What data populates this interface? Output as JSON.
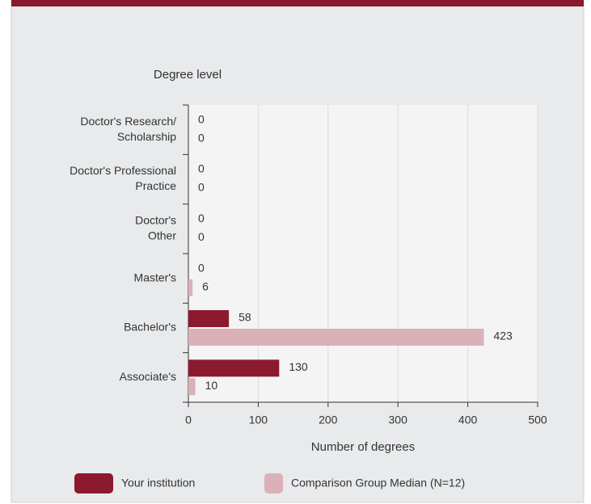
{
  "chart_data": {
    "type": "barh",
    "y_axis_title": "Degree level",
    "x_axis_title": "Number of degrees",
    "categories": [
      [
        "Doctor's Research/",
        "Scholarship"
      ],
      [
        "Doctor's Professional",
        "Practice"
      ],
      [
        "Doctor's",
        "Other"
      ],
      [
        "Master's"
      ],
      [
        "Bachelor's"
      ],
      [
        "Associate's"
      ]
    ],
    "series": [
      {
        "name": "Your institution",
        "color": "#8b1a2f",
        "values": [
          0,
          0,
          0,
          0,
          58,
          130
        ]
      },
      {
        "name": "Comparison Group Median (N=12)",
        "color": "#dbb1b8",
        "values": [
          0,
          0,
          0,
          6,
          423,
          10
        ]
      }
    ],
    "xlim": [
      0,
      500
    ],
    "xticks": [
      0,
      100,
      200,
      300,
      400,
      500
    ],
    "grid": true
  }
}
